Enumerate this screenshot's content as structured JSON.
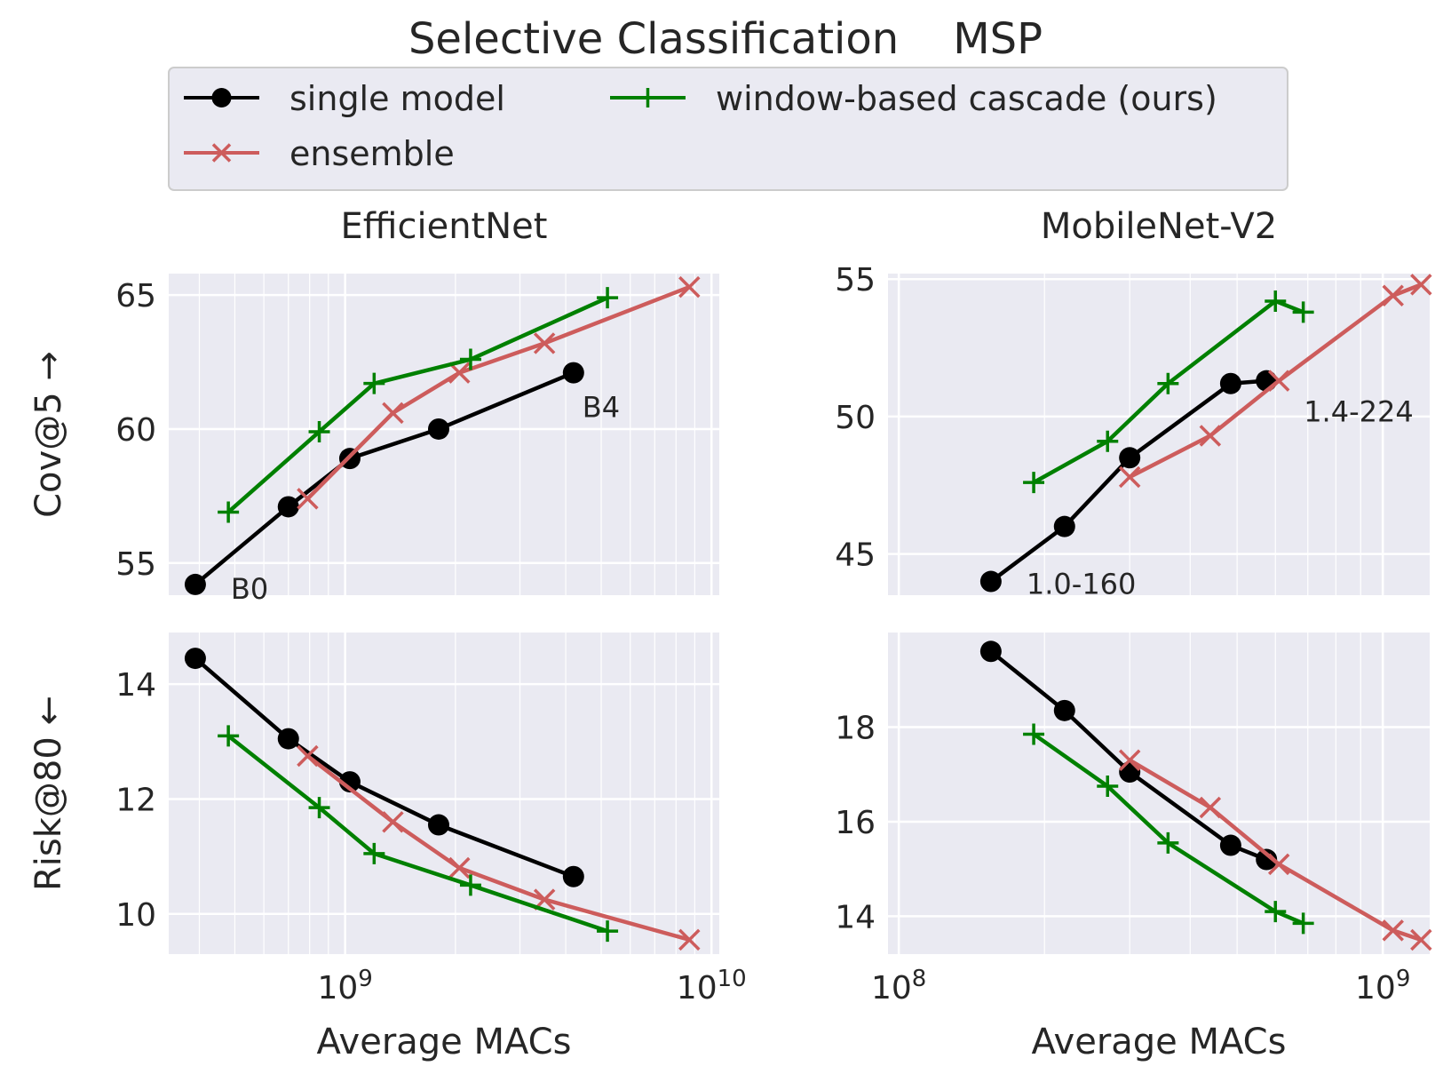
{
  "figure": {
    "title": "Selective Classification    MSP"
  },
  "legend": {
    "entries": [
      {
        "label": "single model",
        "color": "#000000",
        "marker": "circle"
      },
      {
        "label": "window-based cascade (ours)",
        "color": "#008000",
        "marker": "plus"
      },
      {
        "label": "ensemble",
        "color": "#cd5c5c",
        "marker": "x"
      }
    ],
    "placement": "top-center"
  },
  "colors": {
    "single": "#000000",
    "ensemble": "#cd5c5c",
    "cascade": "#008000",
    "axes_bg": "#eaeaf2",
    "grid": "#ffffff"
  },
  "chart_data": [
    {
      "type": "line",
      "title": "EfficientNet",
      "xlabel": "",
      "ylabel": "Cov@5 →",
      "xscale": "log",
      "xlim": [
        330000000.0,
        10500000000.0
      ],
      "ylim": [
        53.8,
        65.8
      ],
      "yticks": [
        55,
        60,
        65
      ],
      "xticks": [
        1000000000.0,
        10000000000.0
      ],
      "xtick_labels": [
        "",
        ""
      ],
      "series": [
        {
          "name": "single model",
          "x": [
            390000000.0,
            700000000.0,
            1030000000.0,
            1800000000.0,
            4200000000.0
          ],
          "y": [
            54.2,
            57.1,
            58.9,
            60.0,
            62.1
          ]
        },
        {
          "name": "ensemble",
          "x": [
            790000000.0,
            1350000000.0,
            2050000000.0,
            3500000000.0,
            8700000000.0
          ],
          "y": [
            57.4,
            60.6,
            62.1,
            63.2,
            65.3
          ]
        },
        {
          "name": "window-based cascade (ours)",
          "x": [
            480000000.0,
            850000000.0,
            1200000000.0,
            2200000000.0,
            5200000000.0
          ],
          "y": [
            56.9,
            59.9,
            61.7,
            62.6,
            64.9
          ]
        }
      ],
      "annotations": [
        {
          "text": "B0",
          "x": 390000000.0,
          "y": 54.2
        },
        {
          "text": "B4",
          "x": 4200000000.0,
          "y": 62.1
        }
      ],
      "grid": true
    },
    {
      "type": "line",
      "title": "MobileNet-V2",
      "xlabel": "",
      "ylabel": "",
      "xscale": "log",
      "xlim": [
        95000000.0,
        1250000000.0
      ],
      "ylim": [
        43.5,
        55.2
      ],
      "yticks": [
        45,
        50,
        55
      ],
      "xticks": [
        100000000.0,
        1000000000.0
      ],
      "xtick_labels": [
        "",
        ""
      ],
      "series": [
        {
          "name": "single model",
          "x": [
            155000000.0,
            220000000.0,
            300000000.0,
            485000000.0,
            575000000.0
          ],
          "y": [
            44.0,
            46.0,
            48.5,
            51.2,
            51.3
          ]
        },
        {
          "name": "ensemble",
          "x": [
            300000000.0,
            440000000.0,
            610000000.0,
            1050000000.0,
            1200000000.0
          ],
          "y": [
            47.8,
            49.3,
            51.3,
            54.4,
            54.8
          ]
        },
        {
          "name": "window-based cascade (ours)",
          "x": [
            190000000.0,
            270000000.0,
            360000000.0,
            600000000.0,
            685000000.0
          ],
          "y": [
            47.6,
            49.1,
            51.2,
            54.2,
            53.8
          ]
        }
      ],
      "annotations": [
        {
          "text": "1.0-160",
          "x": 155000000.0,
          "y": 44.0
        },
        {
          "text": "1.4-224",
          "x": 575000000.0,
          "y": 51.3
        }
      ],
      "grid": true
    },
    {
      "type": "line",
      "title": "",
      "xlabel": "Average MACs",
      "ylabel": "Risk@80 ←",
      "xscale": "log",
      "xlim": [
        330000000.0,
        10500000000.0
      ],
      "ylim": [
        9.3,
        14.9
      ],
      "yticks": [
        10,
        12,
        14
      ],
      "xticks": [
        1000000000.0,
        10000000000.0
      ],
      "xtick_labels": [
        "10^9",
        "10^10"
      ],
      "series": [
        {
          "name": "single model",
          "x": [
            390000000.0,
            700000000.0,
            1030000000.0,
            1800000000.0,
            4200000000.0
          ],
          "y": [
            14.45,
            13.05,
            12.3,
            11.55,
            10.65
          ]
        },
        {
          "name": "ensemble",
          "x": [
            790000000.0,
            1350000000.0,
            2050000000.0,
            3500000000.0,
            8700000000.0
          ],
          "y": [
            12.75,
            11.6,
            10.8,
            10.25,
            9.55
          ]
        },
        {
          "name": "window-based cascade (ours)",
          "x": [
            480000000.0,
            850000000.0,
            1200000000.0,
            2200000000.0,
            5200000000.0
          ],
          "y": [
            13.1,
            11.85,
            11.05,
            10.5,
            9.7
          ]
        }
      ],
      "grid": true
    },
    {
      "type": "line",
      "title": "",
      "xlabel": "Average MACs",
      "ylabel": "",
      "xscale": "log",
      "xlim": [
        95000000.0,
        1250000000.0
      ],
      "ylim": [
        13.2,
        20.0
      ],
      "yticks": [
        14,
        16,
        18
      ],
      "xticks": [
        100000000.0,
        1000000000.0
      ],
      "xtick_labels": [
        "10^8",
        "10^9"
      ],
      "series": [
        {
          "name": "single model",
          "x": [
            155000000.0,
            220000000.0,
            300000000.0,
            485000000.0,
            575000000.0
          ],
          "y": [
            19.6,
            18.35,
            17.05,
            15.5,
            15.2
          ]
        },
        {
          "name": "ensemble",
          "x": [
            300000000.0,
            440000000.0,
            610000000.0,
            1050000000.0,
            1200000000.0
          ],
          "y": [
            17.3,
            16.3,
            15.1,
            13.7,
            13.5
          ]
        },
        {
          "name": "window-based cascade (ours)",
          "x": [
            190000000.0,
            270000000.0,
            360000000.0,
            600000000.0,
            685000000.0
          ],
          "y": [
            17.85,
            16.75,
            15.55,
            14.1,
            13.85
          ]
        }
      ],
      "grid": true
    }
  ]
}
